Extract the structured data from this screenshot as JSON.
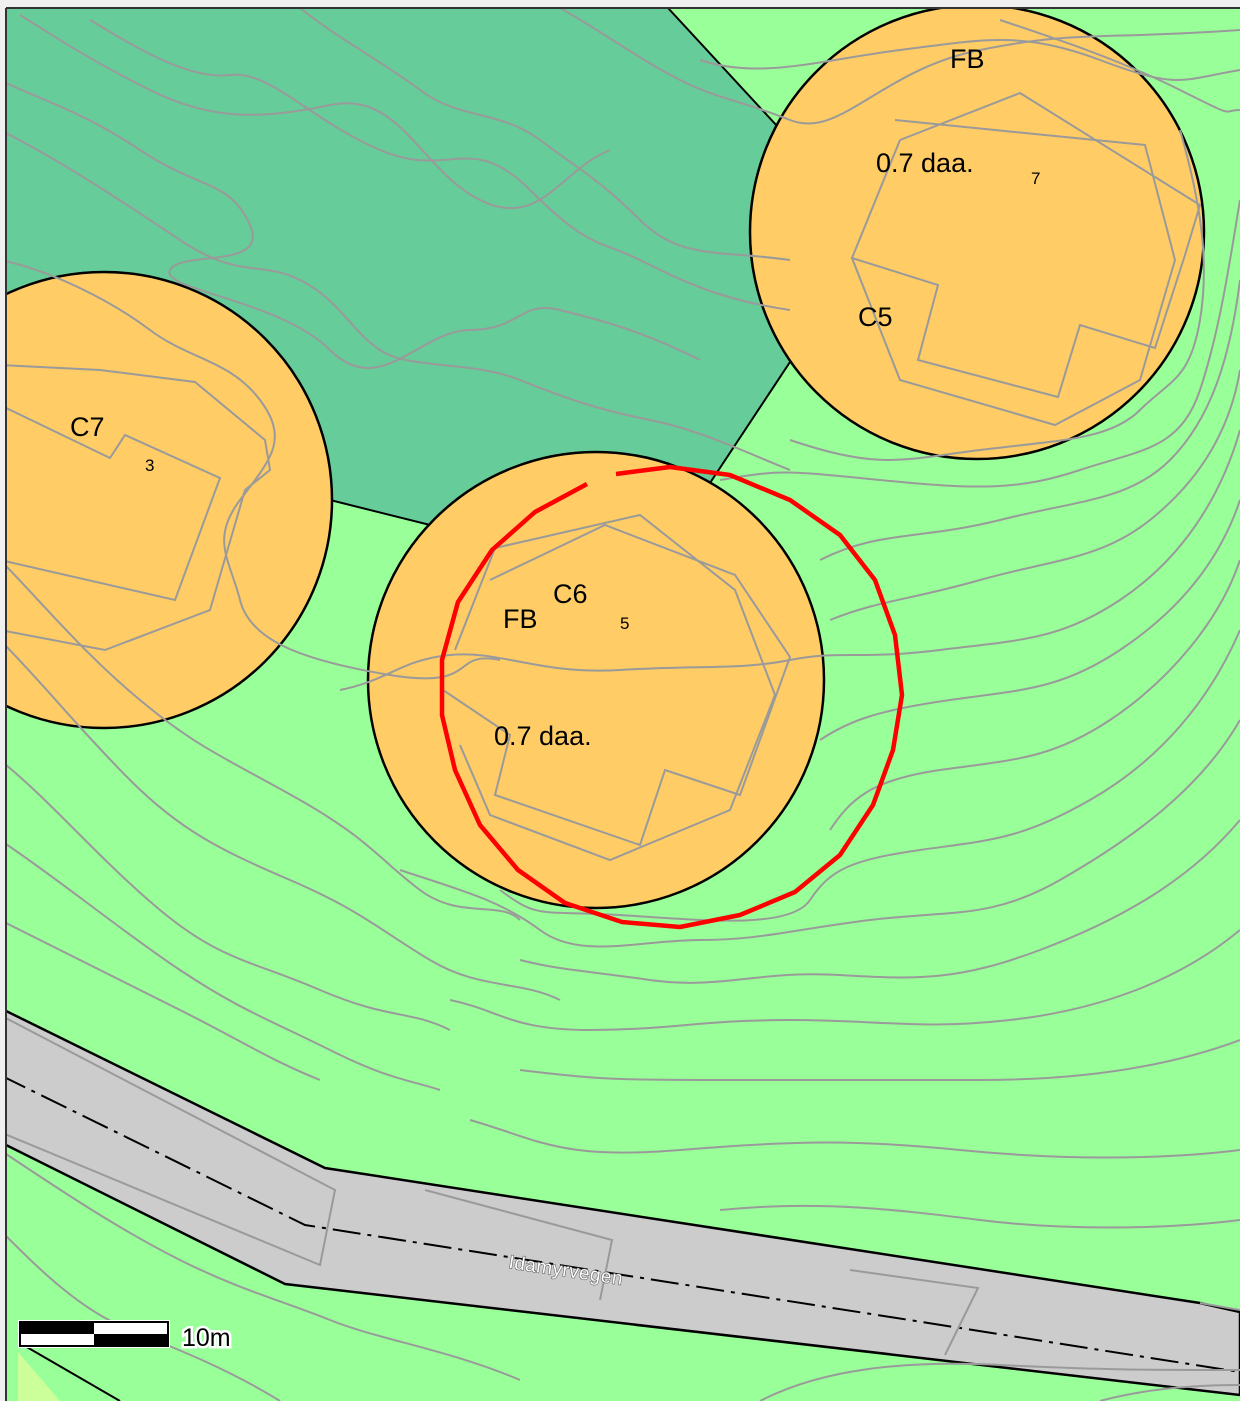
{
  "map": {
    "colors": {
      "background_green": "#99ff99",
      "forest_green": "#66cc99",
      "plot_orange": "#ffcc66",
      "road_grey": "#cccccc",
      "contour_grey": "#9a9a9a",
      "boundary_black": "#000000",
      "highlight_red": "#ff0000"
    },
    "plots": [
      {
        "id": "C5",
        "label": "C5",
        "usage": "FB",
        "area": "0.7 daa.",
        "number": "7"
      },
      {
        "id": "C6",
        "label": "C6",
        "usage": "FB",
        "area": "0.7 daa.",
        "number": "5"
      },
      {
        "id": "C7",
        "label": "C7",
        "number": "3"
      }
    ],
    "road": {
      "name": "Idamyrvegen"
    },
    "scale": {
      "label": "10m"
    }
  }
}
